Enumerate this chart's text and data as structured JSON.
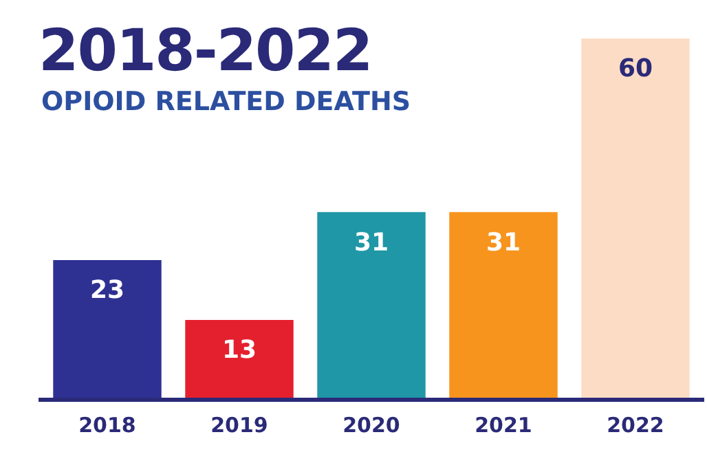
{
  "chart_data": {
    "type": "bar",
    "title": "2018-2022",
    "subtitle": "OPIOID RELATED DEATHS",
    "categories": [
      "2018",
      "2019",
      "2020",
      "2021",
      "2022"
    ],
    "values": [
      23,
      13,
      31,
      31,
      60
    ],
    "colors": [
      "#2e3192",
      "#e5202e",
      "#1f97a6",
      "#f7941d",
      "#fcdcc5"
    ],
    "data_labels": true,
    "grid": false,
    "legend": false,
    "tick_labels": "x"
  }
}
